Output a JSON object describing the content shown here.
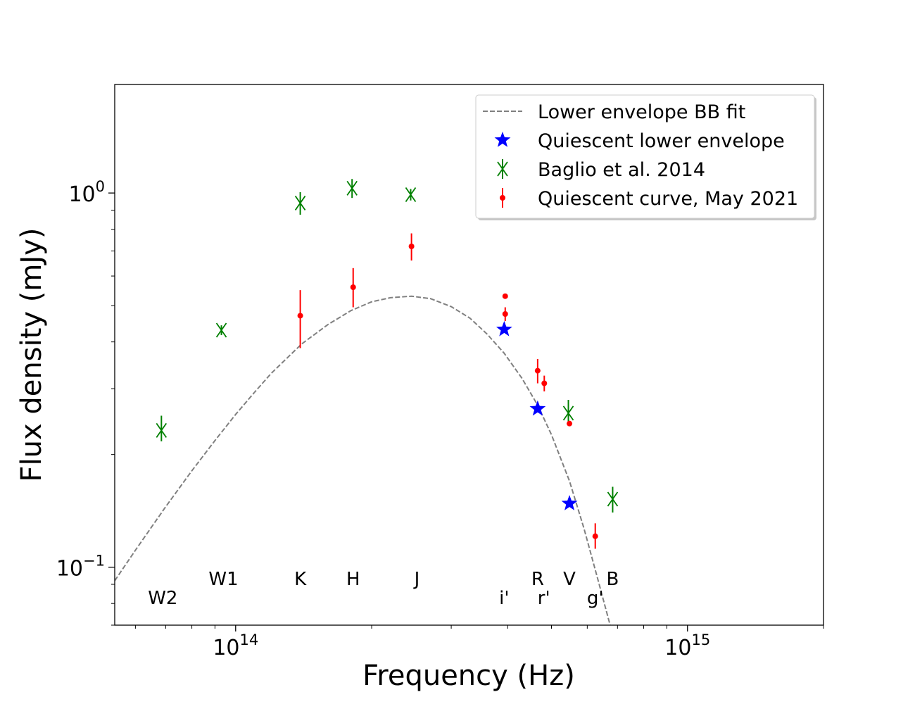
{
  "chart_data": {
    "type": "scatter",
    "xlabel": "Frequency (Hz)",
    "ylabel": "Flux density (mJy)",
    "xscale": "log",
    "yscale": "log",
    "xlim": [
      54000000000000.0,
      2000000000000000.0
    ],
    "ylim": [
      0.07,
      1.95
    ],
    "legend_position": "top-right",
    "grid": false,
    "x_ticks": [
      {
        "value": 100000000000000.0,
        "base": "10",
        "exp": "14"
      },
      {
        "value": 1000000000000000.0,
        "base": "10",
        "exp": "15"
      }
    ],
    "y_ticks": [
      {
        "value": 0.1,
        "base": "10",
        "exp": "−1"
      },
      {
        "value": 1.0,
        "base": "10",
        "exp": "0"
      }
    ],
    "band_labels": [
      {
        "text": "W2",
        "x": 69000000000000.0,
        "row": "lower"
      },
      {
        "text": "W1",
        "x": 94000000000000.0,
        "row": "upper"
      },
      {
        "text": "K",
        "x": 139000000000000.0,
        "row": "upper"
      },
      {
        "text": "H",
        "x": 182000000000000.0,
        "row": "upper"
      },
      {
        "text": "J",
        "x": 252000000000000.0,
        "row": "upper"
      },
      {
        "text": "i'",
        "x": 393000000000000.0,
        "row": "lower"
      },
      {
        "text": "R",
        "x": 466000000000000.0,
        "row": "upper"
      },
      {
        "text": "r'",
        "x": 481000000000000.0,
        "row": "lower"
      },
      {
        "text": "V",
        "x": 548000000000000.0,
        "row": "upper"
      },
      {
        "text": "g'",
        "x": 625000000000000.0,
        "row": "lower"
      },
      {
        "text": "B",
        "x": 683000000000000.0,
        "row": "upper"
      }
    ],
    "series": [
      {
        "name": "Lower envelope BB fit",
        "kind": "line",
        "color": "#808080",
        "dash": "dashed",
        "points": [
          [
            54000000000000.0,
            0.092
          ],
          [
            60000000000000.0,
            0.111
          ],
          [
            70000000000000.0,
            0.145
          ],
          [
            80000000000000.0,
            0.181
          ],
          [
            90000000000000.0,
            0.218
          ],
          [
            100000000000000.0,
            0.256
          ],
          [
            110000000000000.0,
            0.293
          ],
          [
            120000000000000.0,
            0.33
          ],
          [
            140000000000000.0,
            0.395
          ],
          [
            160000000000000.0,
            0.445
          ],
          [
            180000000000000.0,
            0.485
          ],
          [
            200000000000000.0,
            0.512
          ],
          [
            220000000000000.0,
            0.525
          ],
          [
            245000000000000.0,
            0.53
          ],
          [
            270000000000000.0,
            0.522
          ],
          [
            300000000000000.0,
            0.497
          ],
          [
            330000000000000.0,
            0.463
          ],
          [
            360000000000000.0,
            0.42
          ],
          [
            393000000000000.0,
            0.373
          ],
          [
            430000000000000.0,
            0.32
          ],
          [
            466000000000000.0,
            0.271
          ],
          [
            500000000000000.0,
            0.226
          ],
          [
            548000000000000.0,
            0.17
          ],
          [
            590000000000000.0,
            0.127
          ],
          [
            630000000000000.0,
            0.095
          ],
          [
            670000000000000.0,
            0.072
          ],
          [
            685000000000000.0,
            0.0655
          ]
        ]
      },
      {
        "name": "Quiescent lower envelope",
        "kind": "points",
        "marker": "star",
        "color": "#0000ff",
        "points": [
          [
            393000000000000.0,
            0.432
          ],
          [
            466000000000000.0,
            0.265
          ],
          [
            548000000000000.0,
            0.148
          ]
        ]
      },
      {
        "name": "Baglio et al. 2014",
        "kind": "points",
        "marker": "x",
        "color": "#008000",
        "points": [
          {
            "x": 68500000000000.0,
            "y": 0.232,
            "yerr": [
              0.015,
              0.022
            ]
          },
          {
            "x": 93000000000000.0,
            "y": 0.43,
            "yerr": [
              0.013,
              0.013
            ]
          },
          {
            "x": 139000000000000.0,
            "y": 0.94,
            "yerr": [
              0.065,
              0.065
            ]
          },
          {
            "x": 181000000000000.0,
            "y": 1.03,
            "yerr": [
              0.06,
              0.06
            ]
          },
          {
            "x": 244000000000000.0,
            "y": 0.99,
            "yerr": [
              0.035,
              0.035
            ]
          },
          {
            "x": 545000000000000.0,
            "y": 0.258,
            "yerr": [
              0.018,
              0.022
            ]
          },
          {
            "x": 683000000000000.0,
            "y": 0.152,
            "yerr": [
              0.012,
              0.012
            ]
          }
        ]
      },
      {
        "name": "Quiescent curve, May 2021",
        "kind": "points",
        "marker": "dot",
        "color": "#ff0000",
        "points": [
          {
            "x": 139000000000000.0,
            "y": 0.47,
            "yerr": [
              0.085,
              0.08
            ]
          },
          {
            "x": 182000000000000.0,
            "y": 0.56,
            "yerr": [
              0.065,
              0.07
            ]
          },
          {
            "x": 245000000000000.0,
            "y": 0.72,
            "yerr": [
              0.06,
              0.06
            ]
          },
          {
            "x": 395000000000000.0,
            "y": 0.53,
            "yerr": [
              0.0,
              0.0
            ]
          },
          {
            "x": 395000000000000.0,
            "y": 0.475,
            "yerr": [
              0.02,
              0.02
            ]
          },
          {
            "x": 466000000000000.0,
            "y": 0.335,
            "yerr": [
              0.025,
              0.025
            ]
          },
          {
            "x": 482000000000000.0,
            "y": 0.31,
            "yerr": [
              0.015,
              0.015
            ]
          },
          {
            "x": 548000000000000.0,
            "y": 0.242,
            "yerr": [
              0.0,
              0.0
            ]
          },
          {
            "x": 625000000000000.0,
            "y": 0.121,
            "yerr": [
              0.009,
              0.01
            ]
          }
        ]
      }
    ]
  }
}
